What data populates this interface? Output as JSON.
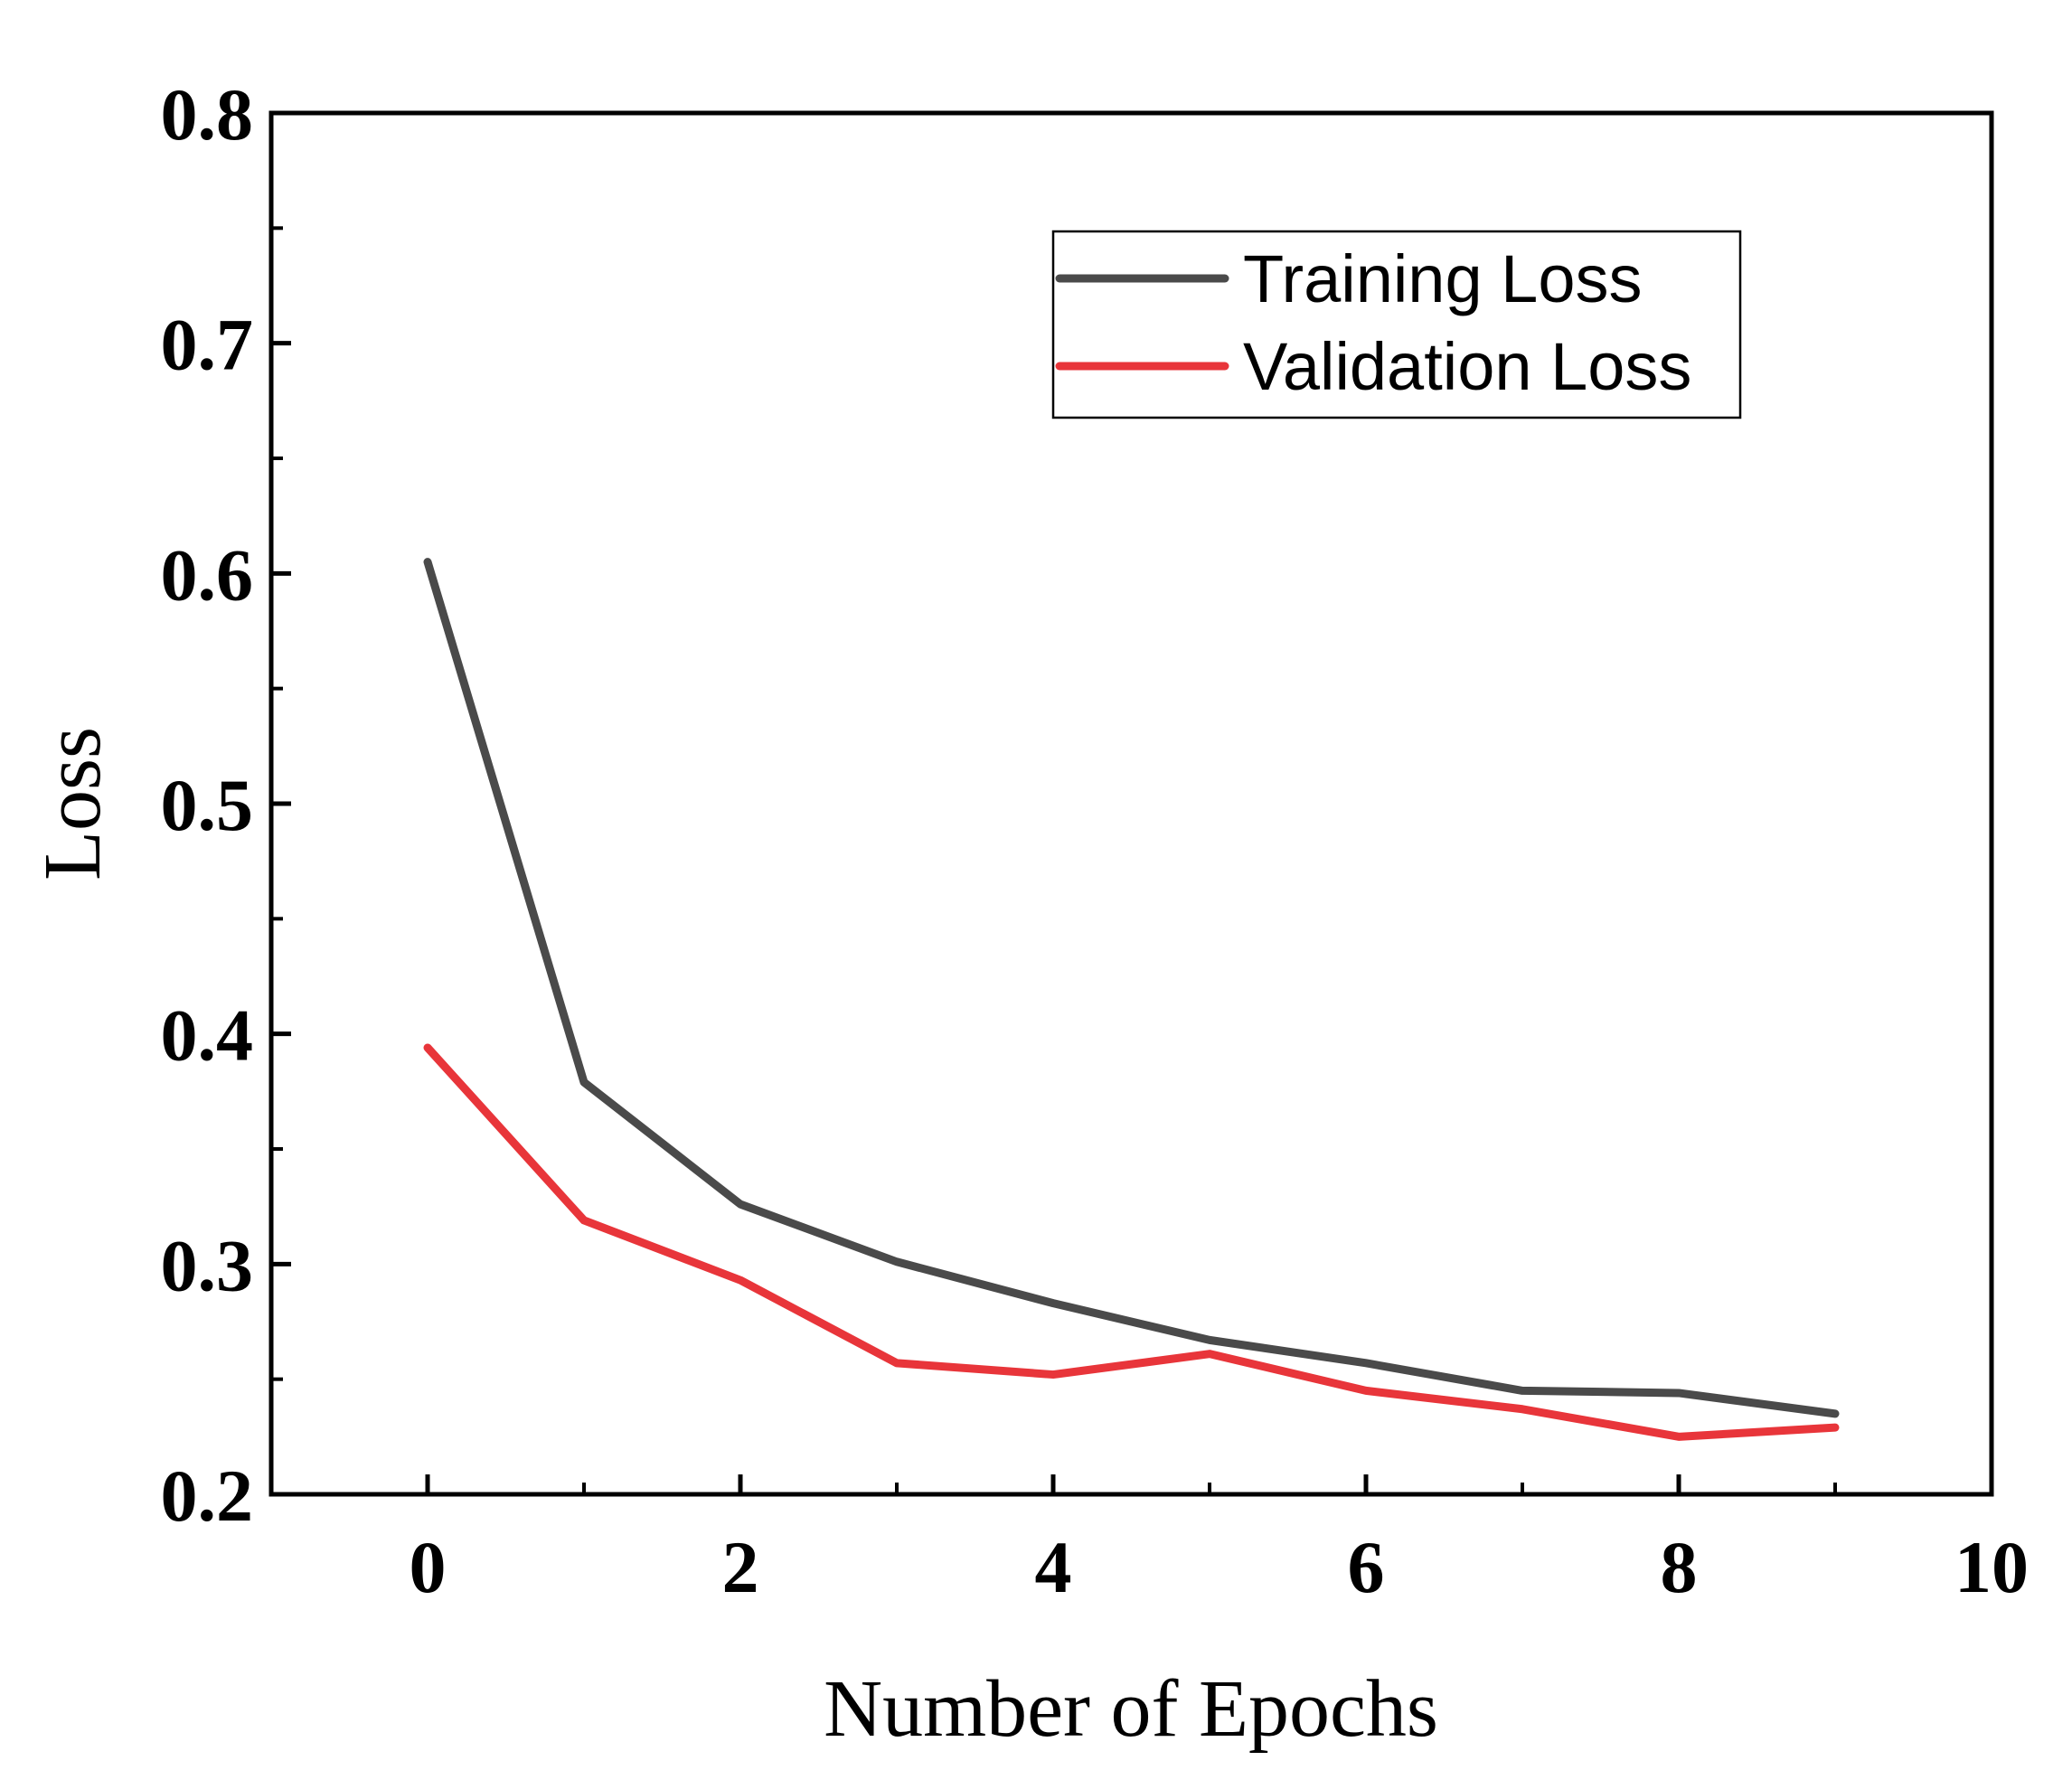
{
  "chart_data": {
    "type": "line",
    "title": "",
    "xlabel": "Number of Epochs",
    "ylabel": "Loss",
    "xlim": [
      -1,
      10
    ],
    "ylim": [
      0.2,
      0.8
    ],
    "xticks": [
      0,
      2,
      4,
      6,
      8,
      10
    ],
    "xtick_labels": [
      "0",
      "2",
      "4",
      "6",
      "8",
      "10"
    ],
    "xminor_ticks": [
      1,
      3,
      5,
      7,
      9
    ],
    "yticks": [
      0.2,
      0.3,
      0.4,
      0.5,
      0.6,
      0.7,
      0.8
    ],
    "ytick_labels": [
      "0.2",
      "0.3",
      "0.4",
      "0.5",
      "0.6",
      "0.7",
      "0.8"
    ],
    "yminor_ticks": [
      0.25,
      0.35,
      0.45,
      0.55,
      0.65,
      0.75
    ],
    "grid": false,
    "legend_position": "top-right",
    "x": [
      0,
      1,
      2,
      3,
      4,
      5,
      6,
      7,
      8,
      9
    ],
    "series": [
      {
        "name": "Training Loss",
        "color": "#4a4a4a",
        "values": [
          0.605,
          0.379,
          0.326,
          0.301,
          0.283,
          0.267,
          0.257,
          0.245,
          0.244,
          0.235
        ]
      },
      {
        "name": "Validation Loss",
        "color": "#e8353a",
        "values": [
          0.394,
          0.319,
          0.293,
          0.257,
          0.252,
          0.261,
          0.245,
          0.237,
          0.225,
          0.229
        ]
      }
    ]
  }
}
